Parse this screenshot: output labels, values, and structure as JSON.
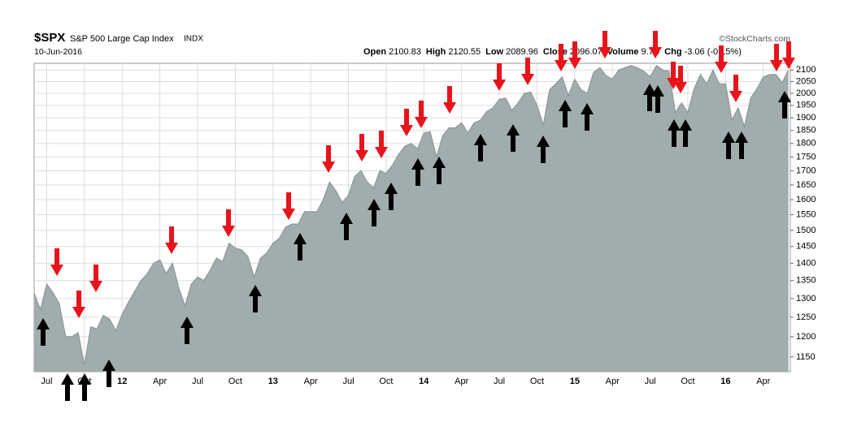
{
  "chart_data": {
    "type": "area",
    "title": "$SPX",
    "subtitle": "S&P 500 Large Cap Index",
    "exchange": "INDX",
    "date": "10-Jun-2016",
    "source": "©StockCharts.com",
    "stats": [
      {
        "label": "Open",
        "value": "2100.83"
      },
      {
        "label": "High",
        "value": "2120.55"
      },
      {
        "label": "Low",
        "value": "2089.96"
      },
      {
        "label": "Close",
        "value": "2096.07"
      },
      {
        "label": "Volume",
        "value": "9.7B"
      },
      {
        "label": "Chg",
        "value": "-3.06 (-0.15%)"
      }
    ],
    "color": "#a1adac",
    "line_color": "#8b9897",
    "log_scale": true,
    "grid": true,
    "y_axis_side": "right",
    "ylim": [
      1115,
      2130
    ],
    "yticks": [
      1150,
      1200,
      1250,
      1300,
      1350,
      1400,
      1450,
      1500,
      1550,
      1600,
      1650,
      1700,
      1750,
      1800,
      1850,
      1900,
      1950,
      2000,
      2050,
      2100
    ],
    "categories": [
      null,
      null,
      "Jul",
      null,
      null,
      null,
      null,
      null,
      "Oct",
      null,
      null,
      null,
      null,
      null,
      "12",
      null,
      null,
      null,
      null,
      null,
      "Apr",
      null,
      null,
      null,
      null,
      null,
      "Jul",
      null,
      null,
      null,
      null,
      null,
      "Oct",
      null,
      null,
      null,
      null,
      null,
      "13",
      null,
      null,
      null,
      null,
      null,
      "Apr",
      null,
      null,
      null,
      null,
      null,
      "Jul",
      null,
      null,
      null,
      null,
      null,
      "Oct",
      null,
      null,
      null,
      null,
      null,
      "14",
      null,
      null,
      null,
      null,
      null,
      "Apr",
      null,
      null,
      null,
      null,
      null,
      "Jul",
      null,
      null,
      null,
      null,
      null,
      "Oct",
      null,
      null,
      null,
      null,
      null,
      "15",
      null,
      null,
      null,
      null,
      null,
      "Apr",
      null,
      null,
      null,
      null,
      null,
      "Jul",
      null,
      null,
      null,
      null,
      null,
      "Oct",
      null,
      null,
      null,
      null,
      null,
      "16",
      null,
      null,
      null,
      null,
      null,
      "Apr",
      null,
      null,
      null,
      null
    ],
    "values": [
      1315,
      1270,
      1340,
      1316,
      1286,
      1200,
      1200,
      1210,
      1130,
      1225,
      1220,
      1255,
      1245,
      1215,
      1258,
      1290,
      1320,
      1350,
      1370,
      1400,
      1410,
      1370,
      1400,
      1330,
      1280,
      1340,
      1360,
      1350,
      1380,
      1415,
      1405,
      1460,
      1445,
      1440,
      1420,
      1360,
      1415,
      1430,
      1460,
      1475,
      1510,
      1520,
      1520,
      1560,
      1560,
      1560,
      1600,
      1660,
      1630,
      1590,
      1615,
      1680,
      1700,
      1660,
      1640,
      1700,
      1690,
      1720,
      1760,
      1790,
      1800,
      1780,
      1840,
      1845,
      1750,
      1830,
      1860,
      1860,
      1880,
      1840,
      1880,
      1890,
      1925,
      1940,
      1975,
      1980,
      1930,
      1960,
      2000,
      2005,
      1950,
      1870,
      2015,
      2040,
      2070,
      1990,
      2060,
      2015,
      2000,
      2090,
      2110,
      2075,
      2060,
      2100,
      2110,
      2120,
      2110,
      2095,
      2070,
      2120,
      2100,
      2095,
      1920,
      1960,
      1920,
      2020,
      2080,
      2040,
      2100,
      2040,
      2040,
      1890,
      1940,
      1865,
      1980,
      2020,
      2070,
      2080,
      2080,
      2045,
      2100
    ]
  }
}
